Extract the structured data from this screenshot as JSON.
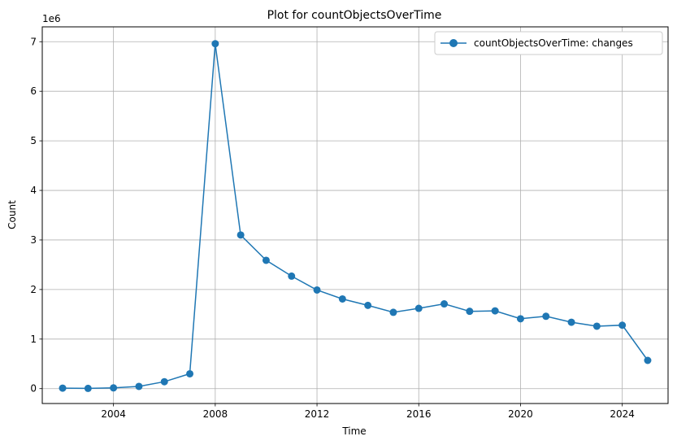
{
  "chart_data": {
    "type": "line",
    "title": "Plot for countObjectsOverTime",
    "xlabel": "Time",
    "ylabel": "Count",
    "y_offset_label": "1e6",
    "xlim": [
      2001.2,
      2025.8
    ],
    "ylim": [
      -300000,
      7300000
    ],
    "x_ticks": [
      2004,
      2008,
      2012,
      2016,
      2020,
      2024
    ],
    "x_tick_labels": [
      "2004",
      "2008",
      "2012",
      "2016",
      "2020",
      "2024"
    ],
    "y_ticks": [
      0,
      1000000,
      2000000,
      3000000,
      4000000,
      5000000,
      6000000,
      7000000
    ],
    "y_tick_labels": [
      "0",
      "1",
      "2",
      "3",
      "4",
      "5",
      "6",
      "7"
    ],
    "grid": true,
    "legend_position": "top-right",
    "series": [
      {
        "name": "countObjectsOverTime: changes",
        "color": "#1f77b4",
        "marker": "circle",
        "x": [
          2002,
          2003,
          2004,
          2005,
          2006,
          2007,
          2008,
          2009,
          2010,
          2011,
          2012,
          2013,
          2014,
          2015,
          2016,
          2017,
          2018,
          2019,
          2020,
          2021,
          2022,
          2023,
          2024,
          2025
        ],
        "values": [
          10000,
          5000,
          15000,
          45000,
          140000,
          300000,
          6960000,
          3100000,
          2590000,
          2270000,
          1990000,
          1810000,
          1680000,
          1540000,
          1620000,
          1710000,
          1560000,
          1570000,
          1410000,
          1460000,
          1340000,
          1260000,
          1280000,
          570000
        ]
      }
    ]
  }
}
